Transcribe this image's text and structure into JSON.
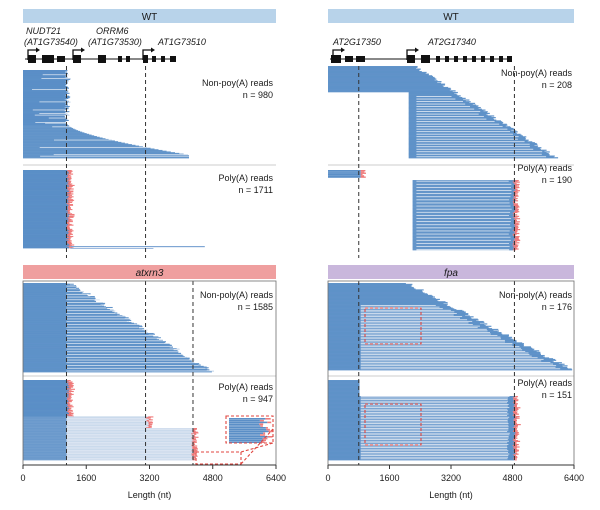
{
  "colors": {
    "wt_header": "#b8d3ea",
    "atxrn3_header": "#ef9f9f",
    "fpa_header": "#c9b7dc",
    "read_blue": "#5b8fc7",
    "polya_tail": "#ef7b7b",
    "dashed_highlight": "#e0453f"
  },
  "chart_data": [
    {
      "type": "read-alignment",
      "column": "left",
      "genes": [
        {
          "name": "NUDT21",
          "id": "(AT1G73540)"
        },
        {
          "name": "ORRM6",
          "id": "(AT1G73530)"
        },
        {
          "name": "AT1G73510",
          "id": ""
        }
      ],
      "panels": [
        {
          "genotype": "WT",
          "label": "Non-poy(A) reads",
          "count": "n = 980",
          "tail": false
        },
        {
          "genotype": "WT",
          "label": "Poly(A) reads",
          "count": "n = 1711",
          "tail": true
        },
        {
          "genotype": "atxrn3",
          "label": "Non-poly(A) reads",
          "count": "n = 1585",
          "tail": false
        },
        {
          "genotype": "atxrn3",
          "label": "Poly(A) reads",
          "count": "n = 947",
          "tail": true
        }
      ],
      "dashed_lines_nt": [
        1100,
        3100,
        4300
      ],
      "xaxis": {
        "ticks": [
          0,
          1600,
          3200,
          4800,
          6400
        ],
        "tick_labels": [
          "0",
          "1600",
          "3200",
          "4800",
          "6400"
        ],
        "range": [
          0,
          6400
        ],
        "label": "Length (nt)"
      }
    },
    {
      "type": "read-alignment",
      "column": "right",
      "genes": [
        {
          "name": "AT2G17350",
          "id": ""
        },
        {
          "name": "AT2G17340",
          "id": ""
        }
      ],
      "panels": [
        {
          "genotype": "WT",
          "label": "Non-poy(A) reads",
          "count": "n = 208",
          "tail": false
        },
        {
          "genotype": "WT",
          "label": "Poly(A) reads",
          "count": "n = 190",
          "tail": true
        },
        {
          "genotype": "fpa",
          "label": "Non-poly(A) reads",
          "count": "n = 176",
          "tail": false
        },
        {
          "genotype": "fpa",
          "label": "Poly(A) reads",
          "count": "n = 151",
          "tail": true
        }
      ],
      "dashed_lines_nt": [
        800,
        4850
      ],
      "xaxis": {
        "ticks": [
          0,
          1600,
          3200,
          4800,
          6400
        ],
        "tick_labels": [
          "0",
          "1600",
          "3200",
          "4800",
          "6400"
        ],
        "range": [
          0,
          6400
        ],
        "label": "Length (nt)"
      }
    }
  ],
  "headers": {
    "left_top": "WT",
    "left_mid": "atxrn3",
    "right_top": "WT",
    "right_mid": "fpa"
  },
  "genes": {
    "nudt21": "NUDT21",
    "nudt21_id": "(AT1G73540)",
    "orrm6": "ORRM6",
    "orrm6_id": "(AT1G73530)",
    "at1g73510": "AT1G73510",
    "at2g17350": "AT2G17350",
    "at2g17340": "AT2G17340"
  },
  "panels": {
    "l1": {
      "label": "Non-poy(A) reads",
      "count": "n = 980"
    },
    "l2": {
      "label": "Poly(A) reads",
      "count": "n = 1711"
    },
    "l3": {
      "label": "Non-poly(A) reads",
      "count": "n = 1585"
    },
    "l4": {
      "label": "Poly(A) reads",
      "count": "n = 947"
    },
    "r1": {
      "label": "Non-poy(A) reads",
      "count": "n = 208"
    },
    "r2": {
      "label": "Poly(A) reads",
      "count": "n = 190"
    },
    "r3": {
      "label": "Non-poly(A) reads",
      "count": "n = 176"
    },
    "r4": {
      "label": "Poly(A) reads",
      "count": "n = 151"
    }
  },
  "axes": {
    "ticks": [
      "0",
      "1600",
      "3200",
      "4800",
      "6400"
    ],
    "xlabel": "Length (nt)"
  }
}
